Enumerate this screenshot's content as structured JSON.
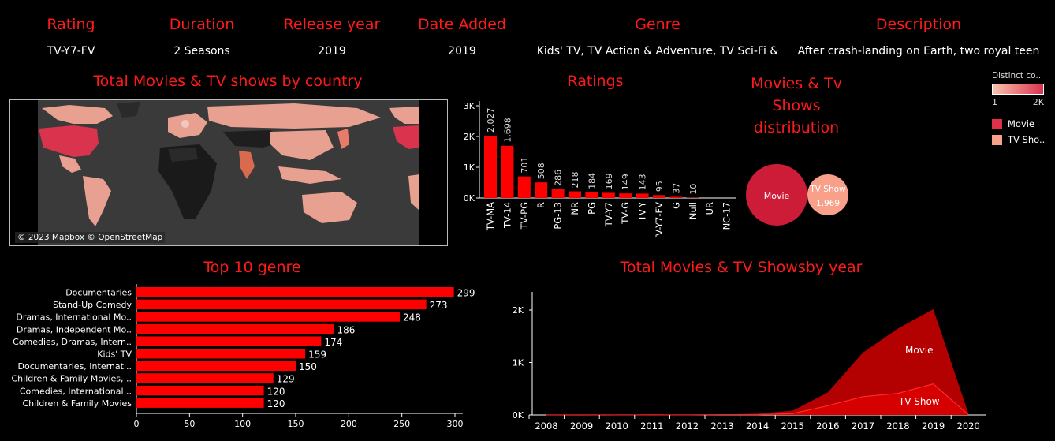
{
  "header": {
    "fields": [
      {
        "label": "Rating",
        "value": "TV-Y7-FV"
      },
      {
        "label": "Duration",
        "value": "2 Seasons"
      },
      {
        "label": "Release year",
        "value": "2019"
      },
      {
        "label": "Date Added",
        "value": "2019"
      },
      {
        "label": "Genre",
        "value": "Kids' TV, TV Action & Adventure, TV Sci-Fi &"
      },
      {
        "label": "Description",
        "value": "After crash-landing on Earth, two royal teen"
      }
    ]
  },
  "map": {
    "title": "Total Movies & TV shows by country",
    "credit": "© 2023 Mapbox © OpenStreetMap"
  },
  "legend": {
    "title": "Distinct co..",
    "min_label": "1",
    "max_label": "2K",
    "items": [
      {
        "label": "Movie",
        "color": "#e0314b"
      },
      {
        "label": "TV Sho..",
        "color": "#f9a08a"
      }
    ]
  },
  "colors": {
    "accent": "#ff1a1a",
    "bar": "#ff0000",
    "movie": "#cd1c38",
    "tvshow": "#f9a08a",
    "area_movie": "#b30000",
    "area_tv": "#d60000"
  },
  "chart_data": [
    {
      "type": "bar",
      "title": "Ratings",
      "categories": [
        "TV-MA",
        "TV-14",
        "TV-PG",
        "R",
        "PG-13",
        "NR",
        "PG",
        "TV-Y7",
        "TV-G",
        "TV-Y",
        "TV-Y7-FV",
        "G",
        "Null",
        "UR",
        "NC-17"
      ],
      "values": [
        2027,
        1698,
        701,
        508,
        286,
        218,
        184,
        169,
        149,
        143,
        95,
        37,
        10,
        0,
        0
      ],
      "value_labels": [
        "2,027",
        "1,698",
        "701",
        "508",
        "286",
        "218",
        "184",
        "169",
        "149",
        "143",
        "95",
        "37",
        "10",
        "",
        ""
      ],
      "yticks": [
        "3K",
        "2K",
        "1K",
        "0K"
      ],
      "ylim": [
        0,
        3000
      ]
    },
    {
      "type": "bubble",
      "title": "Movies & Tv Shows distribution",
      "title_lines": [
        "Movies & Tv",
        "Shows",
        "distribution"
      ],
      "items": [
        {
          "name": "Movie",
          "label": "Movie",
          "value_label": ""
        },
        {
          "name": "TV Show",
          "label": "TV Show",
          "value_label": "1,969",
          "value": 1969
        }
      ]
    },
    {
      "type": "bar",
      "orientation": "horizontal",
      "title": "Top 10 genre",
      "categories": [
        "Documentaries",
        "Stand-Up Comedy",
        "Dramas, International Mo..",
        "Dramas, Independent Mo..",
        "Comedies, Dramas, Intern..",
        "Kids' TV",
        "Documentaries, Internati..",
        "Children & Family Movies, ..",
        "Comedies, International ..",
        "Children & Family Movies"
      ],
      "values": [
        299,
        273,
        248,
        186,
        174,
        159,
        150,
        129,
        120,
        120
      ],
      "xticks": [
        "0",
        "50",
        "100",
        "150",
        "200",
        "250",
        "300"
      ],
      "xlim": [
        0,
        300
      ]
    },
    {
      "type": "area",
      "title": "Total Movies & TV Showsby year",
      "x": [
        "2008",
        "2009",
        "2010",
        "2011",
        "2012",
        "2013",
        "2014",
        "2015",
        "2016",
        "2017",
        "2018",
        "2019",
        "2020"
      ],
      "series": [
        {
          "name": "Movie",
          "values": [
            2,
            2,
            1,
            13,
            3,
            6,
            19,
            56,
            253,
            839,
            1237,
            1424,
            25
          ]
        },
        {
          "name": "TV Show",
          "values": [
            1,
            0,
            1,
            1,
            1,
            5,
            5,
            26,
            176,
            349,
            412,
            592,
            4
          ]
        }
      ],
      "yticks": [
        "2K",
        "1K",
        "0K"
      ],
      "ylim": [
        0,
        2400
      ]
    }
  ]
}
